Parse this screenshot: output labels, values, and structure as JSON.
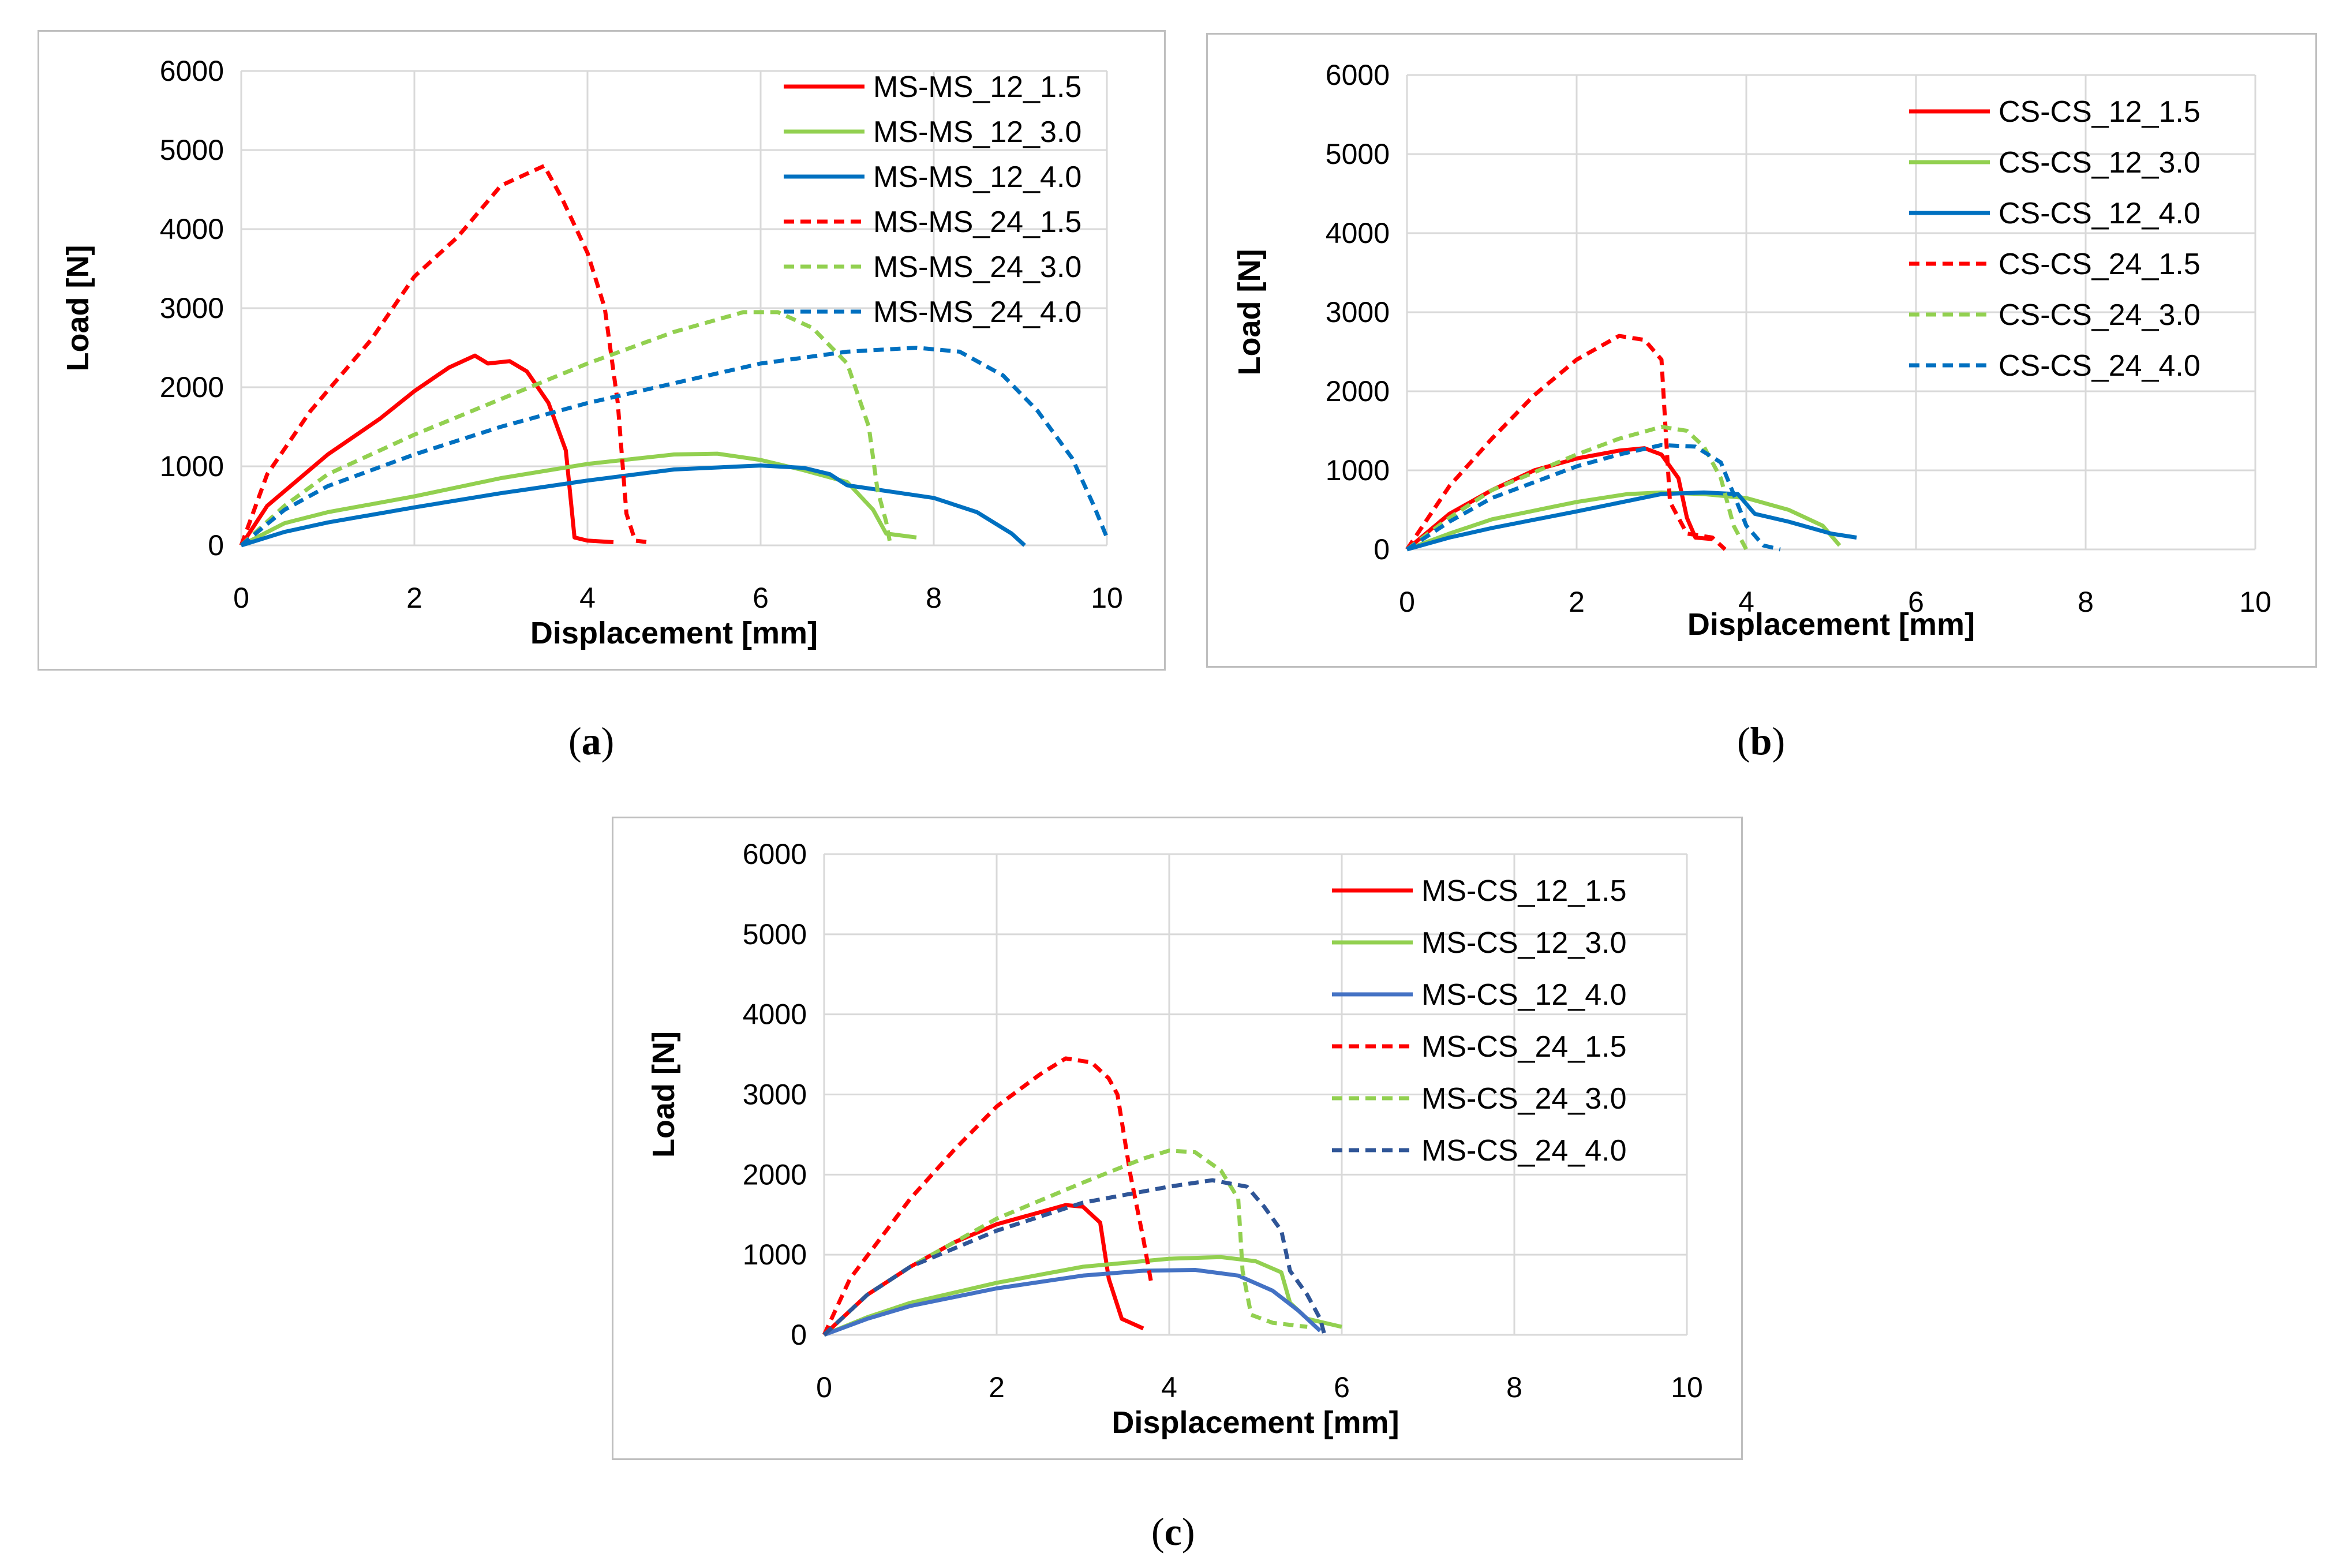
{
  "captions": {
    "a": "a",
    "b": "b",
    "c": "c"
  },
  "chart_data": [
    {
      "id": "a",
      "type": "line",
      "title": "",
      "xlabel": "Displacement [mm]",
      "ylabel": "Load [N]",
      "xlim": [
        0,
        10
      ],
      "ylim": [
        0,
        6000
      ],
      "xticks": [
        0,
        2,
        4,
        6,
        8,
        10
      ],
      "yticks": [
        0,
        1000,
        2000,
        3000,
        4000,
        5000,
        6000
      ],
      "grid": true,
      "legend_position": "top-right",
      "series": [
        {
          "name": "MS-MS_12_1.5",
          "color": "#ff0000",
          "dash": false,
          "points": [
            [
              0,
              0
            ],
            [
              0.3,
              500
            ],
            [
              1,
              1150
            ],
            [
              1.6,
              1600
            ],
            [
              2,
              1950
            ],
            [
              2.4,
              2250
            ],
            [
              2.7,
              2400
            ],
            [
              2.85,
              2300
            ],
            [
              3.1,
              2330
            ],
            [
              3.3,
              2200
            ],
            [
              3.55,
              1800
            ],
            [
              3.75,
              1200
            ],
            [
              3.85,
              100
            ],
            [
              4.0,
              60
            ],
            [
              4.3,
              40
            ]
          ]
        },
        {
          "name": "MS-MS_12_3.0",
          "color": "#92d050",
          "dash": false,
          "points": [
            [
              0,
              0
            ],
            [
              0.5,
              280
            ],
            [
              1,
              420
            ],
            [
              2,
              620
            ],
            [
              3,
              850
            ],
            [
              4,
              1030
            ],
            [
              5,
              1150
            ],
            [
              5.5,
              1160
            ],
            [
              6,
              1080
            ],
            [
              6.5,
              950
            ],
            [
              7,
              800
            ],
            [
              7.3,
              450
            ],
            [
              7.45,
              150
            ],
            [
              7.8,
              100
            ]
          ]
        },
        {
          "name": "MS-MS_12_4.0",
          "color": "#0070c0",
          "dash": false,
          "points": [
            [
              0,
              0
            ],
            [
              0.5,
              170
            ],
            [
              1,
              290
            ],
            [
              2,
              480
            ],
            [
              3,
              660
            ],
            [
              4,
              820
            ],
            [
              5,
              960
            ],
            [
              6,
              1010
            ],
            [
              6.5,
              980
            ],
            [
              6.8,
              900
            ],
            [
              7.0,
              760
            ],
            [
              7.5,
              680
            ],
            [
              8,
              600
            ],
            [
              8.5,
              420
            ],
            [
              8.9,
              150
            ],
            [
              9.05,
              0
            ]
          ]
        },
        {
          "name": "MS-MS_24_1.5",
          "color": "#ff0000",
          "dash": true,
          "points": [
            [
              0,
              0
            ],
            [
              0.3,
              900
            ],
            [
              0.8,
              1700
            ],
            [
              1.5,
              2600
            ],
            [
              2,
              3400
            ],
            [
              2.5,
              3900
            ],
            [
              3,
              4550
            ],
            [
              3.3,
              4700
            ],
            [
              3.5,
              4800
            ],
            [
              3.7,
              4400
            ],
            [
              4.0,
              3700
            ],
            [
              4.2,
              3000
            ],
            [
              4.35,
              1800
            ],
            [
              4.45,
              400
            ],
            [
              4.55,
              60
            ],
            [
              4.7,
              40
            ]
          ]
        },
        {
          "name": "MS-MS_24_3.0",
          "color": "#92d050",
          "dash": true,
          "points": [
            [
              0,
              0
            ],
            [
              0.5,
              500
            ],
            [
              1,
              900
            ],
            [
              2,
              1400
            ],
            [
              3,
              1850
            ],
            [
              4,
              2300
            ],
            [
              5,
              2700
            ],
            [
              5.8,
              2950
            ],
            [
              6.2,
              2950
            ],
            [
              6.6,
              2750
            ],
            [
              7.0,
              2300
            ],
            [
              7.25,
              1500
            ],
            [
              7.35,
              700
            ],
            [
              7.45,
              300
            ],
            [
              7.5,
              0
            ]
          ]
        },
        {
          "name": "MS-MS_24_4.0",
          "color": "#0070c0",
          "dash": true,
          "points": [
            [
              0,
              0
            ],
            [
              0.5,
              450
            ],
            [
              1,
              750
            ],
            [
              2,
              1150
            ],
            [
              3,
              1500
            ],
            [
              4,
              1800
            ],
            [
              5,
              2050
            ],
            [
              6,
              2300
            ],
            [
              7,
              2450
            ],
            [
              7.8,
              2500
            ],
            [
              8.3,
              2450
            ],
            [
              8.8,
              2150
            ],
            [
              9.2,
              1700
            ],
            [
              9.6,
              1100
            ],
            [
              9.85,
              500
            ],
            [
              10,
              100
            ]
          ]
        }
      ]
    },
    {
      "id": "b",
      "type": "line",
      "title": "",
      "xlabel": "Displacement [mm]",
      "ylabel": "Load [N]",
      "xlim": [
        0,
        10
      ],
      "ylim": [
        0,
        6000
      ],
      "xticks": [
        0,
        2,
        4,
        6,
        8,
        10
      ],
      "yticks": [
        0,
        1000,
        2000,
        3000,
        4000,
        5000,
        6000
      ],
      "grid": true,
      "legend_position": "top-right",
      "series": [
        {
          "name": "CS-CS_12_1.5",
          "color": "#ff0000",
          "dash": false,
          "points": [
            [
              0,
              0
            ],
            [
              0.5,
              450
            ],
            [
              1,
              750
            ],
            [
              1.5,
              1000
            ],
            [
              2,
              1150
            ],
            [
              2.5,
              1250
            ],
            [
              2.8,
              1280
            ],
            [
              3.0,
              1200
            ],
            [
              3.2,
              900
            ],
            [
              3.3,
              400
            ],
            [
              3.4,
              150
            ],
            [
              3.6,
              130
            ]
          ]
        },
        {
          "name": "CS-CS_12_3.0",
          "color": "#92d050",
          "dash": false,
          "points": [
            [
              0,
              0
            ],
            [
              0.5,
              200
            ],
            [
              1,
              380
            ],
            [
              2,
              600
            ],
            [
              2.6,
              700
            ],
            [
              3,
              720
            ],
            [
              3.5,
              700
            ],
            [
              4,
              650
            ],
            [
              4.5,
              500
            ],
            [
              4.9,
              300
            ],
            [
              5.1,
              50
            ]
          ]
        },
        {
          "name": "CS-CS_12_4.0",
          "color": "#0070c0",
          "dash": false,
          "points": [
            [
              0,
              0
            ],
            [
              0.5,
              150
            ],
            [
              1,
              270
            ],
            [
              2,
              480
            ],
            [
              3,
              700
            ],
            [
              3.5,
              720
            ],
            [
              3.9,
              700
            ],
            [
              4.1,
              450
            ],
            [
              4.5,
              350
            ],
            [
              5,
              200
            ],
            [
              5.3,
              150
            ]
          ]
        },
        {
          "name": "CS-CS_24_1.5",
          "color": "#ff0000",
          "dash": true,
          "points": [
            [
              0,
              0
            ],
            [
              0.5,
              800
            ],
            [
              1,
              1400
            ],
            [
              1.5,
              1950
            ],
            [
              2,
              2400
            ],
            [
              2.5,
              2700
            ],
            [
              2.8,
              2650
            ],
            [
              3.0,
              2400
            ],
            [
              3.05,
              1500
            ],
            [
              3.1,
              600
            ],
            [
              3.3,
              200
            ],
            [
              3.6,
              150
            ],
            [
              3.75,
              0
            ]
          ]
        },
        {
          "name": "CS-CS_24_3.0",
          "color": "#92d050",
          "dash": true,
          "points": [
            [
              0,
              0
            ],
            [
              0.5,
              400
            ],
            [
              1,
              750
            ],
            [
              2,
              1200
            ],
            [
              2.5,
              1400
            ],
            [
              3,
              1550
            ],
            [
              3.3,
              1500
            ],
            [
              3.5,
              1300
            ],
            [
              3.7,
              900
            ],
            [
              3.85,
              300
            ],
            [
              4.0,
              0
            ]
          ]
        },
        {
          "name": "CS-CS_24_4.0",
          "color": "#0070c0",
          "dash": true,
          "points": [
            [
              0,
              0
            ],
            [
              0.5,
              350
            ],
            [
              1,
              650
            ],
            [
              2,
              1050
            ],
            [
              2.5,
              1200
            ],
            [
              3,
              1320
            ],
            [
              3.4,
              1300
            ],
            [
              3.7,
              1100
            ],
            [
              3.85,
              700
            ],
            [
              4.0,
              300
            ],
            [
              4.2,
              50
            ],
            [
              4.4,
              0
            ]
          ]
        }
      ]
    },
    {
      "id": "c",
      "type": "line",
      "title": "",
      "xlabel": "Displacement [mm]",
      "ylabel": "Load [N]",
      "xlim": [
        0,
        10
      ],
      "ylim": [
        0,
        6000
      ],
      "xticks": [
        0,
        2,
        4,
        6,
        8,
        10
      ],
      "yticks": [
        0,
        1000,
        2000,
        3000,
        4000,
        5000,
        6000
      ],
      "grid": true,
      "legend_position": "top-right",
      "series": [
        {
          "name": "MS-CS_12_1.5",
          "color": "#ff0000",
          "dash": false,
          "points": [
            [
              0,
              0
            ],
            [
              0.5,
              500
            ],
            [
              1,
              850
            ],
            [
              1.5,
              1150
            ],
            [
              2,
              1380
            ],
            [
              2.5,
              1530
            ],
            [
              2.8,
              1620
            ],
            [
              3.0,
              1600
            ],
            [
              3.2,
              1400
            ],
            [
              3.3,
              700
            ],
            [
              3.45,
              200
            ],
            [
              3.7,
              80
            ]
          ]
        },
        {
          "name": "MS-CS_12_3.0",
          "color": "#92d050",
          "dash": false,
          "points": [
            [
              0,
              0
            ],
            [
              0.5,
              220
            ],
            [
              1,
              400
            ],
            [
              2,
              650
            ],
            [
              3,
              850
            ],
            [
              4,
              950
            ],
            [
              4.6,
              970
            ],
            [
              5,
              920
            ],
            [
              5.3,
              780
            ],
            [
              5.4,
              400
            ],
            [
              5.6,
              200
            ],
            [
              6.0,
              100
            ]
          ]
        },
        {
          "name": "MS-CS_12_4.0",
          "color": "#4472c4",
          "dash": false,
          "points": [
            [
              0,
              0
            ],
            [
              0.5,
              200
            ],
            [
              1,
              360
            ],
            [
              2,
              580
            ],
            [
              3,
              740
            ],
            [
              3.7,
              800
            ],
            [
              4.3,
              810
            ],
            [
              4.8,
              740
            ],
            [
              5.2,
              550
            ],
            [
              5.5,
              300
            ],
            [
              5.75,
              50
            ]
          ]
        },
        {
          "name": "MS-CS_24_1.5",
          "color": "#ff0000",
          "dash": true,
          "points": [
            [
              0,
              0
            ],
            [
              0.3,
              700
            ],
            [
              1,
              1700
            ],
            [
              1.5,
              2300
            ],
            [
              2,
              2850
            ],
            [
              2.5,
              3250
            ],
            [
              2.8,
              3450
            ],
            [
              3.1,
              3400
            ],
            [
              3.3,
              3200
            ],
            [
              3.4,
              3000
            ],
            [
              3.55,
              2000
            ],
            [
              3.7,
              1200
            ],
            [
              3.8,
              600
            ]
          ]
        },
        {
          "name": "MS-CS_24_3.0",
          "color": "#92d050",
          "dash": true,
          "points": [
            [
              0,
              0
            ],
            [
              0.5,
              500
            ],
            [
              1,
              850
            ],
            [
              2,
              1450
            ],
            [
              3,
              1900
            ],
            [
              3.7,
              2200
            ],
            [
              4.0,
              2300
            ],
            [
              4.3,
              2280
            ],
            [
              4.6,
              2050
            ],
            [
              4.8,
              1700
            ],
            [
              4.85,
              800
            ],
            [
              4.95,
              250
            ],
            [
              5.2,
              150
            ],
            [
              5.6,
              100
            ]
          ]
        },
        {
          "name": "MS-CS_24_4.0",
          "color": "#2f5597",
          "dash": true,
          "points": [
            [
              0,
              0
            ],
            [
              0.5,
              500
            ],
            [
              1,
              850
            ],
            [
              2,
              1300
            ],
            [
              3,
              1650
            ],
            [
              4,
              1850
            ],
            [
              4.5,
              1930
            ],
            [
              4.9,
              1850
            ],
            [
              5.1,
              1600
            ],
            [
              5.3,
              1300
            ],
            [
              5.4,
              800
            ],
            [
              5.6,
              500
            ],
            [
              5.75,
              200
            ],
            [
              5.8,
              0
            ]
          ]
        }
      ]
    }
  ]
}
